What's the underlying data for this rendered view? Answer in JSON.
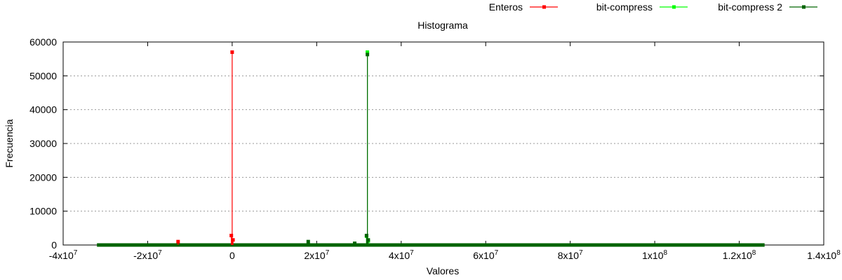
{
  "chart_data": {
    "type": "line",
    "title": "Histograma",
    "xlabel": "Valores",
    "ylabel": "Frecuencia",
    "xlim": [
      -40000000,
      140000000
    ],
    "ylim": [
      0,
      60000
    ],
    "grid": true,
    "legend_position": "top-right",
    "x_ticks": [
      {
        "value": -40000000,
        "base": "-4x10",
        "exp": "7"
      },
      {
        "value": -20000000,
        "base": "-2x10",
        "exp": "7"
      },
      {
        "value": 0,
        "base": "0",
        "exp": ""
      },
      {
        "value": 20000000,
        "base": "2x10",
        "exp": "7"
      },
      {
        "value": 40000000,
        "base": "4x10",
        "exp": "7"
      },
      {
        "value": 60000000,
        "base": "6x10",
        "exp": "7"
      },
      {
        "value": 80000000,
        "base": "8x10",
        "exp": "7"
      },
      {
        "value": 100000000,
        "base": "1x10",
        "exp": "8"
      },
      {
        "value": 120000000,
        "base": "1.2x10",
        "exp": "8"
      },
      {
        "value": 140000000,
        "base": "1.4x10",
        "exp": "8"
      }
    ],
    "y_ticks": [
      0,
      10000,
      20000,
      30000,
      40000,
      50000,
      60000
    ],
    "baseline_range": [
      -32000000,
      126000000
    ],
    "series": [
      {
        "name": "Enteros",
        "color": "#ff0000",
        "points": [
          [
            -12800000,
            1000
          ],
          [
            -200000,
            2800
          ],
          [
            0,
            57000
          ],
          [
            200000,
            1500
          ]
        ]
      },
      {
        "name": "bit-compress",
        "color": "#00ff00",
        "points": [
          [
            31800000,
            2600
          ],
          [
            32000000,
            57000
          ],
          [
            32200000,
            1200
          ]
        ]
      },
      {
        "name": "bit-compress 2",
        "color": "#006400",
        "points": [
          [
            18000000,
            1000
          ],
          [
            29000000,
            500
          ],
          [
            31800000,
            2800
          ],
          [
            32000000,
            56300
          ],
          [
            32200000,
            1500
          ]
        ]
      }
    ]
  }
}
